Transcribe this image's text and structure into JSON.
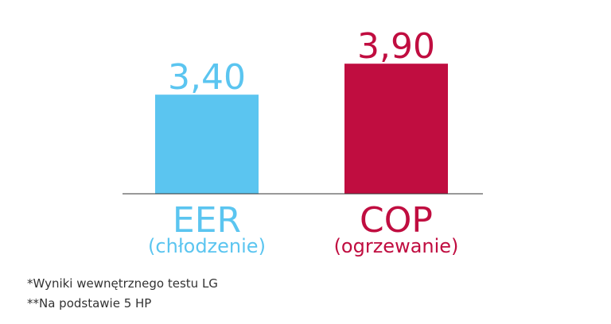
{
  "chart_data": {
    "type": "bar",
    "categories": [
      "EER",
      "COP"
    ],
    "category_notes": [
      "(chłodzenie)",
      "(ogrzewanie)"
    ],
    "values": [
      3.4,
      3.9
    ],
    "value_labels": [
      "3,40",
      "3,90"
    ],
    "colors": [
      "#5bc5f0",
      "#c00d40"
    ],
    "ylim": [
      1.8,
      4.2
    ],
    "footnotes": [
      "*Wyniki wewnętrznego testu LG",
      "**Na podstawie 5 HP"
    ]
  }
}
